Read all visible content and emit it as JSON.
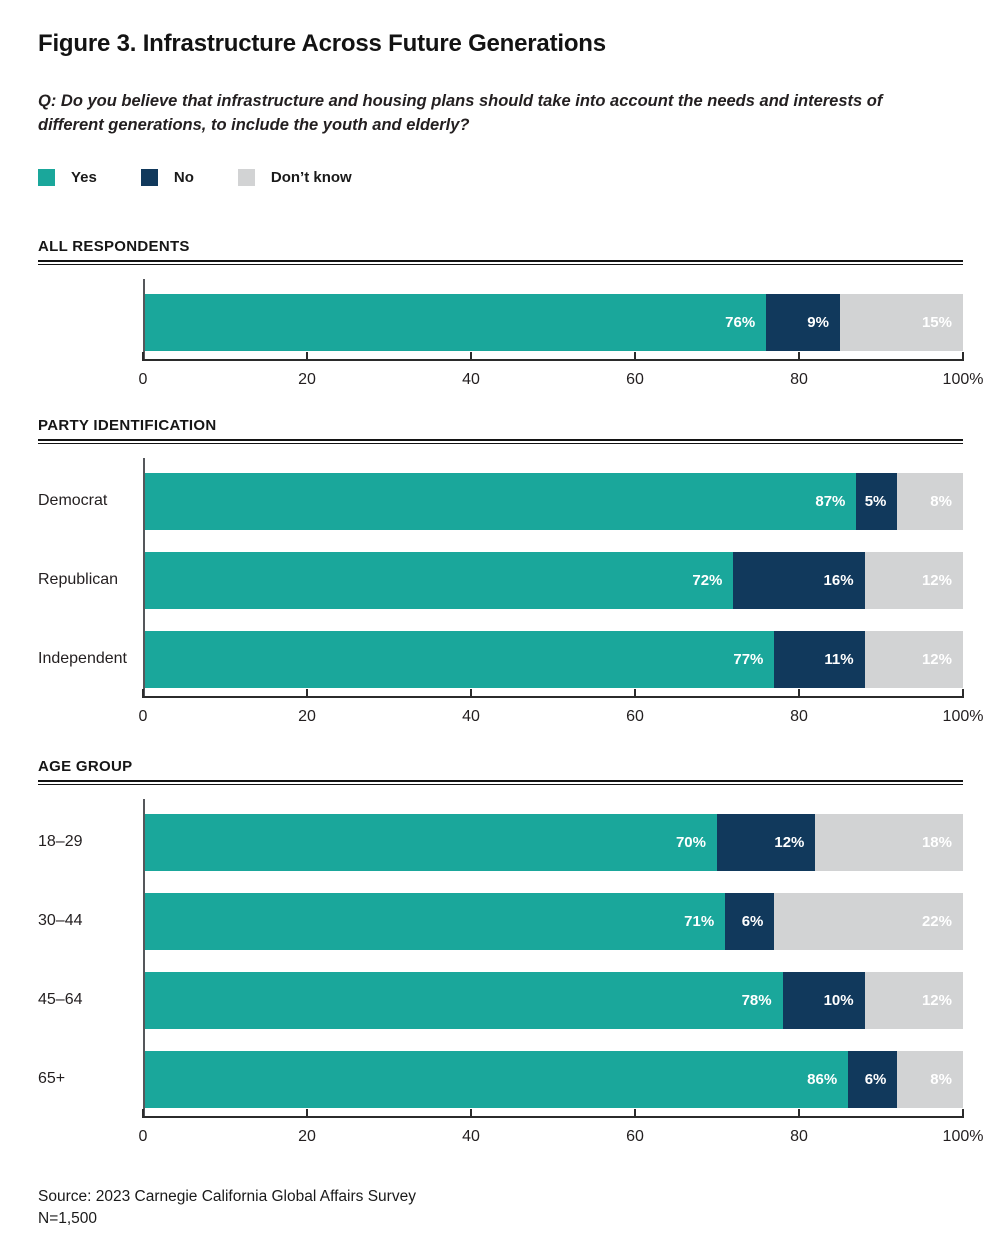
{
  "page": {
    "title": "Figure 3. Infrastructure Across Future Generations",
    "question": "Q: Do you believe that infrastructure and housing plans should take into account the needs and interests of different generations, to include the youth and elderly?",
    "source_line1": "Source: 2023 Carnegie California Global Affairs Survey",
    "source_line2": "N=1,500"
  },
  "legend": [
    {
      "label": "Yes",
      "color": "#1aa79b"
    },
    {
      "label": "No",
      "color": "#11395c"
    },
    {
      "label": "Don’t know",
      "color": "#d2d3d4"
    }
  ],
  "chart_data": {
    "type": "bar",
    "orientation": "horizontal",
    "stacked": true,
    "title": "Figure 3. Infrastructure Across Future Generations",
    "series_names": [
      "Yes",
      "No",
      "Don’t know"
    ],
    "series_keys": [
      "yes",
      "no",
      "dont-know"
    ],
    "colors": [
      "#1aa79b",
      "#11395c",
      "#d2d3d4"
    ],
    "value_label_color": "#ffffff",
    "value_suffix": "%",
    "xlim": [
      0,
      100
    ],
    "x_ticks": [
      0,
      20,
      40,
      60,
      80,
      100
    ],
    "x_tick_labels": [
      "0",
      "20",
      "40",
      "60",
      "80",
      "100%"
    ],
    "grid": false,
    "legend_position": "top",
    "groups": [
      {
        "heading": "ALL RESPONDENTS",
        "rows": [
          {
            "label": "",
            "values": [
              76,
              9,
              15
            ]
          }
        ]
      },
      {
        "heading": "PARTY IDENTIFICATION",
        "rows": [
          {
            "label": "Democrat",
            "values": [
              87,
              5,
              8
            ]
          },
          {
            "label": "Republican",
            "values": [
              72,
              16,
              12
            ]
          },
          {
            "label": "Independent",
            "values": [
              77,
              11,
              12
            ]
          }
        ]
      },
      {
        "heading": "AGE GROUP",
        "rows": [
          {
            "label": "18–29",
            "values": [
              70,
              12,
              18
            ]
          },
          {
            "label": "30–44",
            "values": [
              71,
              6,
              22
            ]
          },
          {
            "label": "45–64",
            "values": [
              78,
              10,
              12
            ]
          },
          {
            "label": "65+",
            "values": [
              86,
              6,
              8
            ]
          }
        ]
      }
    ]
  }
}
